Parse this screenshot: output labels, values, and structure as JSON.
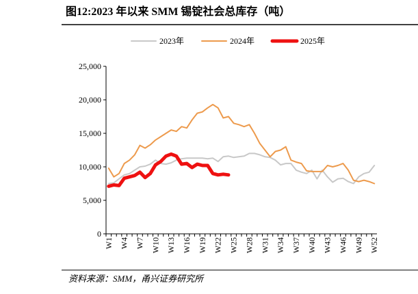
{
  "chart_data": {
    "type": "line",
    "title": "图12:2023 年以来 SMM 锡锭社会总库存（吨）",
    "source": "资料来源：SMM，甬兴证券研究所",
    "categories": [
      "W1",
      null,
      null,
      "W4",
      null,
      null,
      "W7",
      null,
      null,
      "W10",
      null,
      null,
      "W13",
      null,
      null,
      "W16",
      null,
      null,
      "W19",
      null,
      null,
      "W22",
      null,
      null,
      "W25",
      null,
      null,
      "W28",
      null,
      null,
      "W31",
      null,
      null,
      "W34",
      null,
      null,
      "W37",
      null,
      null,
      "W40",
      null,
      null,
      "W43",
      null,
      null,
      "W46",
      null,
      null,
      "W49",
      null,
      null,
      "W52"
    ],
    "series": [
      {
        "name": "2023年",
        "color": "#c8c8c8",
        "width": 2,
        "values": [
          7500,
          7600,
          8200,
          8800,
          9000,
          9500,
          10000,
          10100,
          10400,
          11000,
          10500,
          10400,
          10600,
          11000,
          11200,
          11300,
          11300,
          11300,
          11300,
          11200,
          11300,
          10800,
          11500,
          11600,
          11400,
          11500,
          11600,
          12000,
          12000,
          11800,
          11500,
          11400,
          11000,
          10300,
          10500,
          10500,
          9500,
          9200,
          9000,
          9500,
          8200,
          9500,
          8500,
          7700,
          8200,
          8300,
          7800,
          7500,
          8500,
          9000,
          9200,
          10200
        ]
      },
      {
        "name": "2024年",
        "color": "#ed9a4c",
        "width": 2,
        "values": [
          9800,
          8500,
          9000,
          10500,
          11000,
          11800,
          13200,
          12800,
          13300,
          14000,
          14500,
          15000,
          15500,
          15300,
          16000,
          15800,
          17000,
          18000,
          18200,
          18800,
          19300,
          18800,
          17300,
          17500,
          16500,
          16300,
          16000,
          16300,
          15000,
          13500,
          12500,
          11500,
          12300,
          12500,
          13000,
          11000,
          10700,
          10500,
          9400,
          9300,
          9300,
          9300,
          10200,
          10000,
          10200,
          10500,
          9500,
          8000,
          7800,
          8000,
          7800,
          7500
        ]
      },
      {
        "name": "2025年",
        "color": "#ee1111",
        "width": 5,
        "values": [
          7100,
          7300,
          7200,
          8300,
          8500,
          8700,
          9200,
          8400,
          9000,
          10300,
          10800,
          11600,
          11900,
          11600,
          10400,
          10500,
          9900,
          10400,
          10200,
          10200,
          9000,
          8800,
          8900,
          8800,
          null,
          null,
          null,
          null,
          null,
          null,
          null,
          null,
          null,
          null,
          null,
          null,
          null,
          null,
          null,
          null,
          null,
          null,
          null,
          null,
          null,
          null,
          null,
          null,
          null,
          null,
          null,
          null
        ]
      }
    ],
    "ylim": [
      0,
      25000
    ],
    "yticks": [
      0,
      {
        "value": 5000,
        "label": "5,000"
      },
      {
        "value": 10000,
        "label": "10,000"
      },
      {
        "value": 15000,
        "label": "15,000"
      },
      {
        "value": 20000,
        "label": "20,000"
      },
      {
        "value": 25000,
        "label": "25,000"
      }
    ]
  }
}
